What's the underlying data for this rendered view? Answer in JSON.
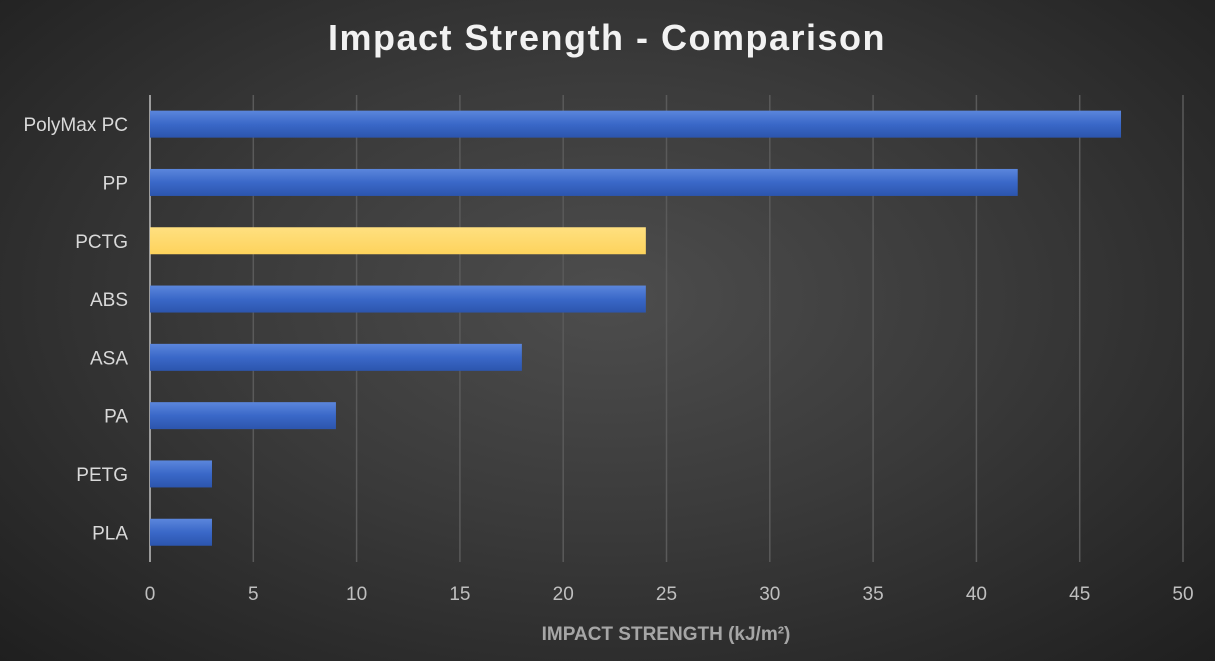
{
  "chart_data": {
    "type": "bar",
    "orientation": "horizontal",
    "title": "Impact Strength - Comparison",
    "xlabel": "IMPACT STRENGTH (kJ/m²)",
    "ylabel": "",
    "categories": [
      "PolyMax PC",
      "PP",
      "PCTG",
      "ABS",
      "ASA",
      "PA",
      "PETG",
      "PLA"
    ],
    "values": [
      47,
      42,
      24,
      24,
      18,
      9,
      3,
      3
    ],
    "highlight": "PCTG",
    "xlim": [
      0,
      50
    ],
    "xticks": [
      0,
      5,
      10,
      15,
      20,
      25,
      30,
      35,
      40,
      45,
      50
    ],
    "grid": true,
    "colors": {
      "bar": "#3a68c8",
      "highlight": "#ffd766",
      "grid": "#5a5a5a",
      "text": "#d9d9d9",
      "tick": "#bfbfbf"
    }
  }
}
